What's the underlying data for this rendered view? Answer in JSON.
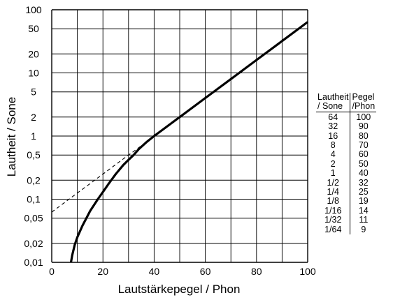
{
  "chart_data": {
    "type": "line",
    "xlabel": "Lautstärkepegel / Phon",
    "ylabel": "Lautheit / Sone",
    "x_ticks": [
      0,
      20,
      40,
      60,
      80,
      100
    ],
    "xlim": [
      0,
      100
    ],
    "y_scale": "log",
    "ylim": [
      0.01,
      100
    ],
    "y_ticks": [
      {
        "value": 0.01,
        "label": "0,01"
      },
      {
        "value": 0.02,
        "label": "0,02"
      },
      {
        "value": 0.05,
        "label": "0,05"
      },
      {
        "value": 0.1,
        "label": "0,1"
      },
      {
        "value": 0.2,
        "label": "0,2"
      },
      {
        "value": 0.5,
        "label": "0,5"
      },
      {
        "value": 1,
        "label": "1"
      },
      {
        "value": 2,
        "label": "2"
      },
      {
        "value": 5,
        "label": "5"
      },
      {
        "value": 10,
        "label": "10"
      },
      {
        "value": 20,
        "label": "20"
      },
      {
        "value": 50,
        "label": "50"
      },
      {
        "value": 100,
        "label": "100"
      }
    ],
    "grid": true,
    "series": [
      {
        "style": "solid",
        "x": [
          7.5,
          8,
          9,
          10,
          12,
          15,
          18,
          20,
          22,
          25,
          28,
          30,
          32,
          34,
          37,
          40,
          50,
          60,
          70,
          80,
          90,
          100
        ],
        "y": [
          0.01,
          0.013,
          0.019,
          0.025,
          0.038,
          0.065,
          0.1,
          0.13,
          0.17,
          0.25,
          0.35,
          0.42,
          0.5,
          0.62,
          0.8,
          1,
          2,
          4,
          8,
          16,
          32,
          64
        ]
      },
      {
        "style": "dashed",
        "x": [
          0,
          10,
          20,
          30,
          32,
          40
        ],
        "y": [
          0.0625,
          0.125,
          0.25,
          0.5,
          0.57,
          1
        ]
      }
    ]
  },
  "table": {
    "headers": [
      [
        "Lautheit",
        "/ Sone"
      ],
      [
        "Pegel",
        "/Phon"
      ]
    ],
    "rows": [
      [
        "64",
        "100"
      ],
      [
        "32",
        "90"
      ],
      [
        "16",
        "80"
      ],
      [
        "8",
        "70"
      ],
      [
        "4",
        "60"
      ],
      [
        "2",
        "50"
      ],
      [
        "1",
        "40"
      ],
      [
        "1/2",
        "32"
      ],
      [
        "1/4",
        "25"
      ],
      [
        "1/8",
        "19"
      ],
      [
        "1/16",
        "14"
      ],
      [
        "1/32",
        "11"
      ],
      [
        "1/64",
        "9"
      ]
    ]
  }
}
